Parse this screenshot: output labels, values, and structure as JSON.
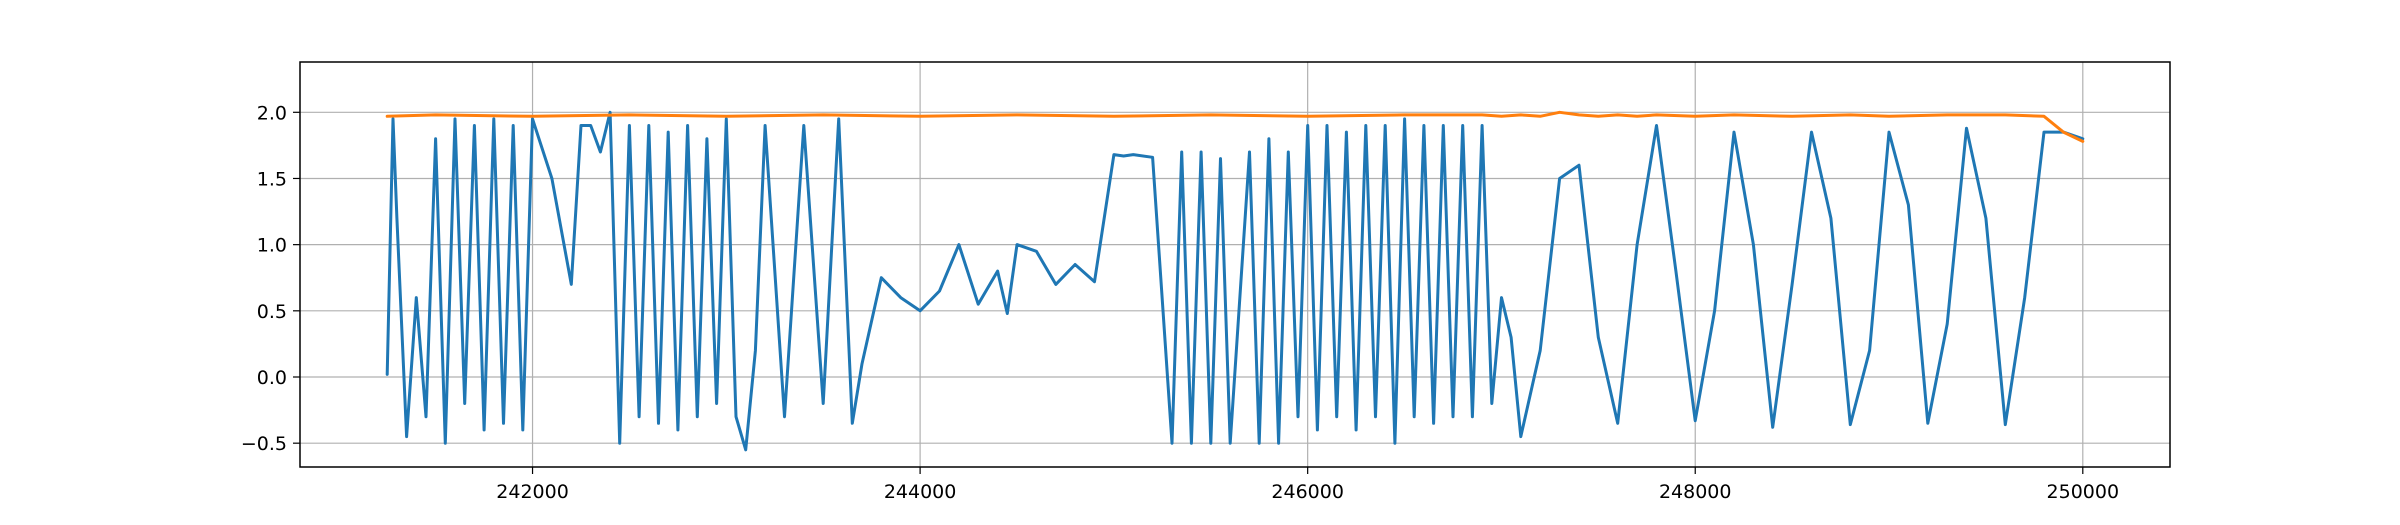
{
  "chart_data": {
    "type": "line",
    "title": "",
    "xlabel": "",
    "ylabel": "",
    "xlim": [
      240800,
      250450
    ],
    "ylim": [
      -0.68,
      2.38
    ],
    "grid": true,
    "x_ticks": [
      242000,
      244000,
      246000,
      248000,
      250000
    ],
    "x_tick_labels": [
      "242000",
      "244000",
      "246000",
      "248000",
      "250000"
    ],
    "y_ticks": [
      -0.5,
      0.0,
      0.5,
      1.0,
      1.5,
      2.0
    ],
    "y_tick_labels": [
      "−0.5",
      "0.0",
      "0.5",
      "1.0",
      "1.5",
      "2.0"
    ],
    "series": [
      {
        "color": "#1f77b4",
        "x": [
          241250,
          241280,
          241300,
          241350,
          241400,
          241450,
          241500,
          241550,
          241600,
          241650,
          241700,
          241750,
          241800,
          241850,
          241900,
          241950,
          242000,
          242100,
          242200,
          242250,
          242300,
          242350,
          242400,
          242450,
          242500,
          242550,
          242600,
          242650,
          242700,
          242750,
          242800,
          242850,
          242900,
          242950,
          243000,
          243050,
          243100,
          243150,
          243200,
          243300,
          243400,
          243500,
          243580,
          243650,
          243700,
          243800,
          243900,
          244000,
          244100,
          244200,
          244300,
          244400,
          244450,
          244500,
          244600,
          244700,
          244800,
          244900,
          245000,
          245050,
          245100,
          245200,
          245300,
          245350,
          245400,
          245450,
          245500,
          245550,
          245600,
          245700,
          245750,
          245800,
          245850,
          245900,
          245950,
          246000,
          246050,
          246100,
          246150,
          246200,
          246250,
          246300,
          246350,
          246400,
          246450,
          246500,
          246550,
          246600,
          246650,
          246700,
          246750,
          246800,
          246850,
          246900,
          246950,
          247000,
          247050,
          247100,
          247200,
          247300,
          247400,
          247500,
          247600,
          247700,
          247800,
          247900,
          248000,
          248100,
          248200,
          248300,
          248400,
          248500,
          248600,
          248700,
          248800,
          248900,
          249000,
          249100,
          249200,
          249300,
          249400,
          249500,
          249600,
          249700,
          249800,
          249900,
          250000
        ],
        "values": [
          0.02,
          1.95,
          1.2,
          -0.45,
          0.6,
          -0.3,
          1.8,
          -0.5,
          1.95,
          -0.2,
          1.9,
          -0.4,
          1.95,
          -0.35,
          1.9,
          -0.4,
          1.95,
          1.5,
          0.7,
          1.9,
          1.9,
          1.7,
          2.0,
          -0.5,
          1.9,
          -0.3,
          1.9,
          -0.35,
          1.85,
          -0.4,
          1.9,
          -0.3,
          1.8,
          -0.2,
          1.95,
          -0.3,
          -0.55,
          0.2,
          1.9,
          -0.3,
          1.9,
          -0.2,
          1.95,
          -0.35,
          0.1,
          0.75,
          0.6,
          0.5,
          0.65,
          1.0,
          0.55,
          0.8,
          0.48,
          1.0,
          0.95,
          0.7,
          0.85,
          0.72,
          1.68,
          1.67,
          1.68,
          1.66,
          -0.5,
          1.7,
          -0.5,
          1.7,
          -0.5,
          1.65,
          -0.5,
          1.7,
          -0.5,
          1.8,
          -0.5,
          1.7,
          -0.3,
          1.9,
          -0.4,
          1.9,
          -0.3,
          1.85,
          -0.4,
          1.9,
          -0.3,
          1.9,
          -0.5,
          1.95,
          -0.3,
          1.9,
          -0.35,
          1.9,
          -0.3,
          1.9,
          -0.3,
          1.9,
          -0.2,
          0.6,
          0.3,
          -0.45,
          0.2,
          1.5,
          1.6,
          0.3,
          -0.35,
          1.0,
          1.9,
          0.8,
          -0.33,
          0.5,
          1.85,
          1.0,
          -0.38,
          0.7,
          1.85,
          1.2,
          -0.36,
          0.2,
          1.85,
          1.3,
          -0.35,
          0.4,
          1.88,
          1.2,
          -0.36,
          0.6,
          1.85,
          1.85,
          1.8
        ]
      },
      {
        "color": "#ff7f0e",
        "x": [
          241250,
          241500,
          242000,
          242500,
          243000,
          243500,
          244000,
          244500,
          245000,
          245500,
          246000,
          246500,
          246900,
          247000,
          247100,
          247200,
          247300,
          247400,
          247500,
          247600,
          247700,
          247800,
          248000,
          248200,
          248500,
          248800,
          249000,
          249300,
          249600,
          249800,
          249900,
          250000
        ],
        "values": [
          1.97,
          1.98,
          1.97,
          1.98,
          1.97,
          1.98,
          1.97,
          1.98,
          1.97,
          1.98,
          1.97,
          1.98,
          1.98,
          1.97,
          1.98,
          1.97,
          2.0,
          1.98,
          1.97,
          1.98,
          1.97,
          1.98,
          1.97,
          1.98,
          1.97,
          1.98,
          1.97,
          1.98,
          1.98,
          1.97,
          1.85,
          1.78
        ]
      }
    ]
  }
}
